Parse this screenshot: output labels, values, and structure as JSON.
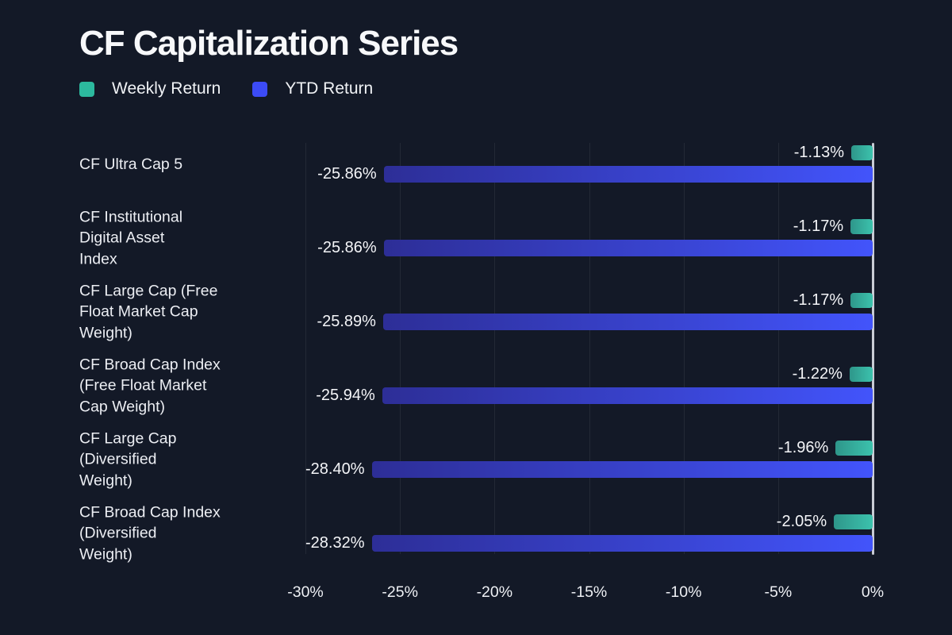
{
  "page": {
    "background": "#131927"
  },
  "header": {
    "title": "CF Capitalization Series"
  },
  "legend": {
    "items": [
      {
        "label": "Weekly Return",
        "color": "#2cb99e"
      },
      {
        "label": "YTD Return",
        "color": "#3c4bf6"
      }
    ]
  },
  "chart_data": {
    "type": "bar",
    "orientation": "horizontal",
    "title": "CF Capitalization Series",
    "categories": [
      "CF Ultra Cap 5",
      "CF Institutional Digital Asset Index",
      "CF Large Cap (Free Float Market Cap Weight)",
      "CF Broad Cap Index (Free Float Market Cap Weight)",
      "CF Large Cap (Diversified Weight)",
      "CF Broad Cap Index (Diversified Weight)"
    ],
    "category_lines": [
      [
        "CF Ultra Cap 5"
      ],
      [
        "CF Institutional",
        "Digital Asset",
        "Index"
      ],
      [
        "CF Large Cap (Free",
        "Float Market Cap",
        "Weight)"
      ],
      [
        "CF Broad Cap Index",
        "(Free Float Market",
        "Cap Weight)"
      ],
      [
        "CF Large Cap",
        "(Diversified",
        "Weight)"
      ],
      [
        "CF Broad Cap Index",
        "(Diversified",
        "Weight)"
      ]
    ],
    "series": [
      {
        "name": "Weekly Return",
        "values": [
          -1.13,
          -1.17,
          -1.17,
          -1.22,
          -1.96,
          -2.05
        ],
        "labels": [
          "-1.13%",
          "-1.17%",
          "-1.17%",
          "-1.22%",
          "-1.96%",
          "-2.05%"
        ],
        "gradient": [
          "#2e968a",
          "#3cc2ad"
        ]
      },
      {
        "name": "YTD Return",
        "values": [
          -25.86,
          -25.86,
          -25.89,
          -25.94,
          -28.4,
          -28.32
        ],
        "labels": [
          "-25.86%",
          "-25.86%",
          "-25.89%",
          "-25.94%",
          "-28.40%",
          "-28.32%"
        ],
        "gradient": [
          "#2d2e97",
          "#4254fb"
        ]
      }
    ],
    "x_axis": {
      "min": -30,
      "max": 0,
      "tick_labels": [
        "-30%",
        "-25%",
        "-20%",
        "-15%",
        "-10%",
        "-5%",
        "0%"
      ],
      "grid": true,
      "zero_axis_color": "#c9ccd5",
      "gridline_color": "rgba(255,255,255,0.07)"
    },
    "legend_position": "top-left",
    "value_label_color": "#f4f5f8"
  }
}
